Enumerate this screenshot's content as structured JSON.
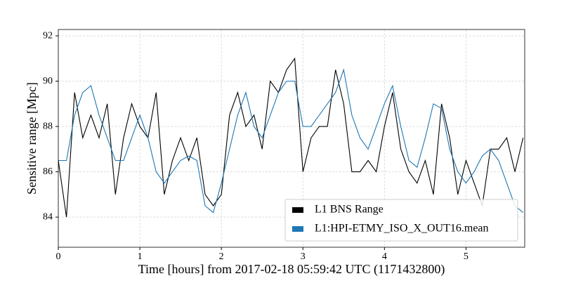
{
  "chart_data": {
    "type": "line",
    "xlabel": "Time [hours] from 2017-02-18 05:59:42 UTC (1171432800)",
    "ylabel": "Sensitive range [Mpc]",
    "x": [
      0,
      0.1,
      0.2,
      0.3,
      0.4,
      0.5,
      0.6,
      0.7,
      0.8,
      0.9,
      1.0,
      1.1,
      1.2,
      1.3,
      1.4,
      1.5,
      1.6,
      1.7,
      1.8,
      1.9,
      2.0,
      2.1,
      2.2,
      2.3,
      2.4,
      2.5,
      2.6,
      2.7,
      2.8,
      2.9,
      3.0,
      3.1,
      3.2,
      3.3,
      3.4,
      3.5,
      3.6,
      3.7,
      3.8,
      3.9,
      4.0,
      4.1,
      4.2,
      4.3,
      4.4,
      4.5,
      4.6,
      4.7,
      4.8,
      4.9,
      5.0,
      5.1,
      5.2,
      5.3,
      5.4,
      5.5,
      5.6,
      5.7
    ],
    "series": [
      {
        "name": "L1 BNS Range",
        "color": "#000000",
        "values": [
          86.5,
          84.0,
          89.5,
          87.5,
          88.5,
          87.5,
          89,
          85,
          87.5,
          89,
          88,
          87.5,
          89.5,
          85,
          86.5,
          87.5,
          86.5,
          87.5,
          85,
          84.5,
          85,
          88.5,
          89.5,
          88,
          88.5,
          87,
          90,
          89.5,
          90.5,
          91,
          86,
          87.5,
          88,
          88,
          90.5,
          89,
          86,
          86,
          86.5,
          86,
          88,
          89.5,
          87,
          86,
          85.5,
          86.5,
          85,
          89,
          87.5,
          85,
          86.5,
          85.5,
          84.5,
          87,
          87,
          87.5,
          86,
          87.5
        ]
      },
      {
        "name": "L1:HPI-ETMY_ISO_X_OUT16.mean",
        "color": "#1f77b4",
        "values": [
          86.5,
          86.5,
          88.5,
          89.5,
          89.8,
          88.5,
          87.5,
          86.5,
          86.5,
          87.5,
          88.5,
          87.5,
          86,
          85.5,
          86,
          86.5,
          86.7,
          86.5,
          84.5,
          84.2,
          85.5,
          87,
          88.5,
          89.5,
          88,
          87.5,
          88.5,
          89.5,
          90,
          90,
          88,
          88,
          88.5,
          89,
          89.5,
          90.5,
          88.5,
          87.5,
          87,
          88,
          89,
          89.8,
          88,
          86.5,
          86.2,
          87.5,
          89,
          88.8,
          87,
          86,
          85.5,
          86,
          86.7,
          87,
          86.5,
          85.5,
          84.5,
          84.2
        ]
      }
    ],
    "xlim": [
      0,
      5.72
    ],
    "ylim": [
      82.67,
      92.28
    ],
    "xticks": [
      0,
      1,
      2,
      3,
      4,
      5
    ],
    "yticks": [
      84,
      86,
      88,
      90,
      92
    ],
    "grid": true,
    "legend": "lower right"
  }
}
